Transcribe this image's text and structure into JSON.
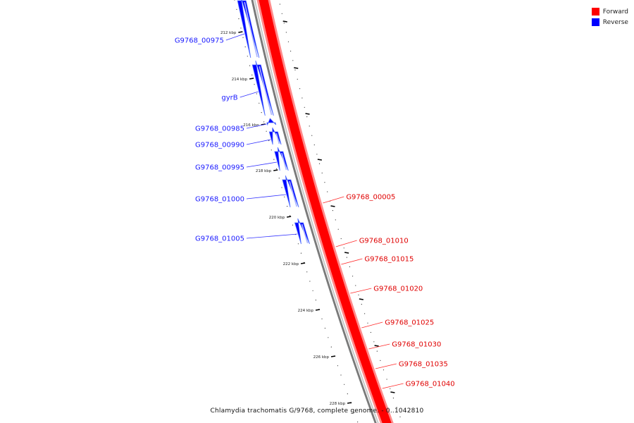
{
  "legend": {
    "items": [
      {
        "label": "Forward",
        "color": "#ff0000"
      },
      {
        "label": "Reverse",
        "color": "#0000ff"
      }
    ]
  },
  "caption": "Chlamydia trachomatis G/9768, complete genome. - 0..1042810",
  "ticks": [
    "212 kbp",
    "214 kbp",
    "216 kbp",
    "218 kbp",
    "220 kbp",
    "222 kbp",
    "224 kbp",
    "226 kbp",
    "228 kbp"
  ],
  "reverse_genes": [
    "G9768_00975",
    "gyrB",
    "G9768_00985",
    "G9768_00990",
    "G9768_00995",
    "G9768_01000",
    "G9768_01005"
  ],
  "forward_genes": [
    "G9768_00005",
    "G9768_01010",
    "G9768_01015",
    "G9768_01020",
    "G9768_01025",
    "G9768_01030",
    "G9768_01035",
    "G9768_01040"
  ]
}
